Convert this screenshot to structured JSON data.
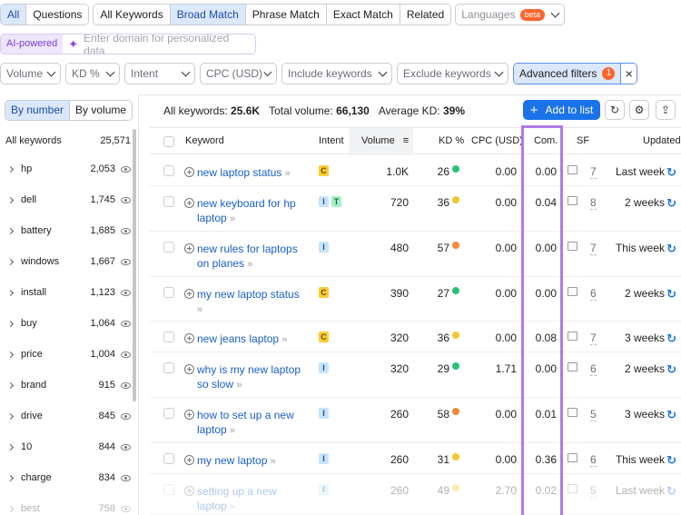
{
  "tabs": {
    "group1": [
      "All",
      "Questions"
    ],
    "group2": [
      "All Keywords",
      "Broad Match",
      "Phrase Match",
      "Exact Match",
      "Related"
    ],
    "active": "Broad Match",
    "languages": {
      "label": "Languages",
      "badge": "beta"
    }
  },
  "ai": {
    "label": "AI-powered",
    "placeholder": "Enter domain for personalized data"
  },
  "filters": {
    "items": [
      "Volume",
      "KD %",
      "Intent",
      "CPC (USD)",
      "Include keywords",
      "Exclude keywords"
    ],
    "advanced": {
      "label": "Advanced filters",
      "count": "1",
      "close": "×"
    }
  },
  "left": {
    "toggle": [
      "By number",
      "By volume"
    ],
    "header": {
      "label": "All keywords",
      "count": "25,571"
    },
    "groups": [
      {
        "name": "hp",
        "count": "2,053"
      },
      {
        "name": "dell",
        "count": "1,745"
      },
      {
        "name": "battery",
        "count": "1,685"
      },
      {
        "name": "windows",
        "count": "1,667"
      },
      {
        "name": "install",
        "count": "1,123"
      },
      {
        "name": "buy",
        "count": "1,064"
      },
      {
        "name": "price",
        "count": "1,004"
      },
      {
        "name": "brand",
        "count": "915"
      },
      {
        "name": "drive",
        "count": "845"
      },
      {
        "name": "10",
        "count": "844"
      },
      {
        "name": "charge",
        "count": "834"
      },
      {
        "name": "best",
        "count": "758"
      }
    ]
  },
  "summary": {
    "all_label": "All keywords:",
    "all_value": "25.6K",
    "volume_label": "Total volume:",
    "volume_value": "66,130",
    "kd_label": "Average KD:",
    "kd_value": "39%"
  },
  "toolbar": {
    "add_label": "Add to list",
    "add_icon": "+"
  },
  "columns": [
    "Keyword",
    "Intent",
    "Volume",
    "KD %",
    "CPC (USD)",
    "Com.",
    "SF",
    "Updated"
  ],
  "rows": [
    {
      "kw1": "new laptop status",
      "kw2": "",
      "intent": [
        "C"
      ],
      "volume": "1.0K",
      "kd": "26",
      "kd_color": "#2bbf7a",
      "cpc": "0.00",
      "com": "0.00",
      "sf": "7",
      "updated": "Last week"
    },
    {
      "kw1": "new keyboard for hp",
      "kw2": "laptop",
      "intent": [
        "I",
        "T"
      ],
      "volume": "720",
      "kd": "36",
      "kd_color": "#f3c531",
      "cpc": "0.00",
      "com": "0.04",
      "sf": "8",
      "updated": "2 weeks"
    },
    {
      "kw1": "new rules for laptops",
      "kw2": "on planes",
      "intent": [
        "I"
      ],
      "volume": "480",
      "kd": "57",
      "kd_color": "#f3883a",
      "cpc": "0.00",
      "com": "0.00",
      "sf": "7",
      "updated": "This week"
    },
    {
      "kw1": "my new laptop status",
      "kw2": "",
      "intent": [
        "C"
      ],
      "volume": "390",
      "kd": "27",
      "kd_color": "#2bbf7a",
      "cpc": "0.00",
      "com": "0.00",
      "sf": "6",
      "updated": "2 weeks"
    },
    {
      "kw1": "new jeans laptop",
      "kw2": "",
      "intent": [
        "C"
      ],
      "volume": "320",
      "kd": "36",
      "kd_color": "#f3c531",
      "cpc": "0.00",
      "com": "0.08",
      "sf": "7",
      "updated": "3 weeks"
    },
    {
      "kw1": "why is my new laptop",
      "kw2": "so slow",
      "intent": [
        "I"
      ],
      "volume": "320",
      "kd": "29",
      "kd_color": "#2bbf7a",
      "cpc": "1.71",
      "com": "0.00",
      "sf": "6",
      "updated": "2 weeks"
    },
    {
      "kw1": "how to set up a new",
      "kw2": "laptop",
      "intent": [
        "I"
      ],
      "volume": "260",
      "kd": "58",
      "kd_color": "#f3883a",
      "cpc": "0.00",
      "com": "0.01",
      "sf": "5",
      "updated": "3 weeks"
    },
    {
      "kw1": "my new laptop",
      "kw2": "",
      "intent": [
        "I"
      ],
      "volume": "260",
      "kd": "31",
      "kd_color": "#f3c531",
      "cpc": "0.00",
      "com": "0.36",
      "sf": "6",
      "updated": "This week"
    },
    {
      "kw1": "setting up a new",
      "kw2": "laptop",
      "intent": [
        "I"
      ],
      "volume": "260",
      "kd": "49",
      "kd_color": "#f3c531",
      "cpc": "2.70",
      "com": "0.02",
      "sf": "5",
      "updated": "Last week"
    }
  ]
}
